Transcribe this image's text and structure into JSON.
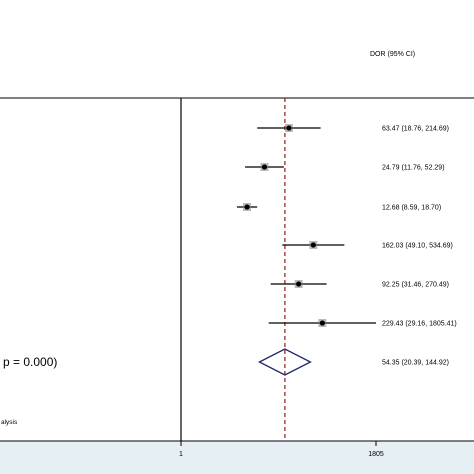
{
  "header": {
    "dor_label": "DOR (95% CI)"
  },
  "heterogeneity_text": "p = 0.000)",
  "footnote": "alysis",
  "colors": {
    "line": "#000000",
    "reference": "#8b1a1a",
    "diamond": "#1f2a6b",
    "axis_band": "#e6f0f4",
    "box": "#808080"
  },
  "chart_data": {
    "type": "forest",
    "scale": "log",
    "x_ticks": [
      {
        "value": 1,
        "label": "1"
      },
      {
        "value": 1805,
        "label": "1805"
      }
    ],
    "reference_line": 54.35,
    "studies": [
      {
        "estimate": 63.47,
        "lower": 18.76,
        "upper": 214.69,
        "label": "63.47 (18.76, 214.69)"
      },
      {
        "estimate": 24.79,
        "lower": 11.76,
        "upper": 52.29,
        "label": "24.79 (11.76, 52.29)"
      },
      {
        "estimate": 12.68,
        "lower": 8.59,
        "upper": 18.7,
        "label": "12.68 (8.59, 18.70)"
      },
      {
        "estimate": 162.03,
        "lower": 49.1,
        "upper": 534.69,
        "label": "162.03 (49.10, 534.69)"
      },
      {
        "estimate": 92.25,
        "lower": 31.46,
        "upper": 270.49,
        "label": "92.25 (31.46, 270.49)"
      },
      {
        "estimate": 229.43,
        "lower": 29.16,
        "upper": 1805.41,
        "label": "229.43 (29.16, 1805.41)"
      }
    ],
    "pooled": {
      "estimate": 54.35,
      "lower": 20.39,
      "upper": 144.92,
      "label": "54.35 (20.39, 144.92)"
    }
  }
}
